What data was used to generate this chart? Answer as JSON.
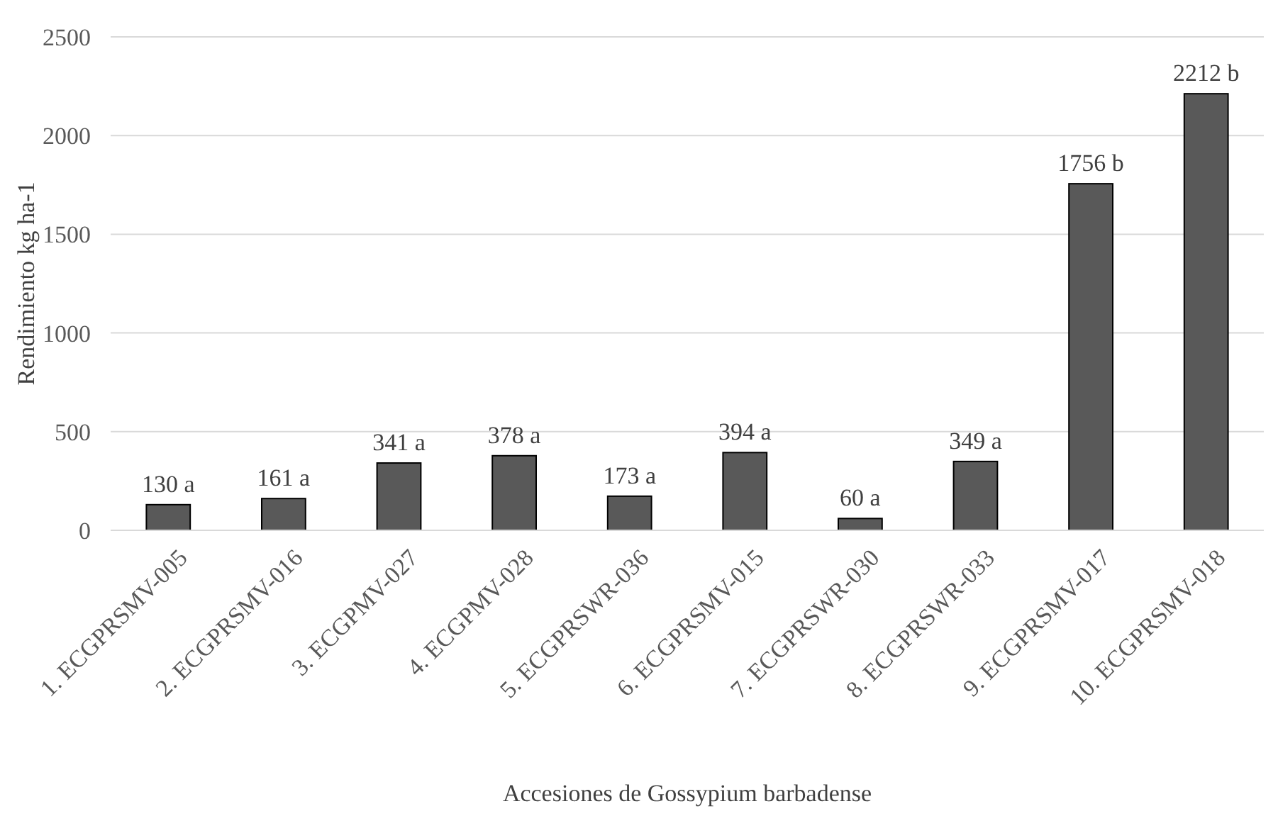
{
  "chart_data": {
    "type": "bar",
    "xlabel": "Accesiones de Gossypium barbadense",
    "ylabel": "Rendimiento kg ha-1",
    "categories": [
      "1. ECGPRSMV-005",
      "2. ECGPRSMV-016",
      "3. ECGPMV-027",
      "4. ECGPMV-028",
      "5. ECGPRSWR-036",
      "6. ECGPRSMV-015",
      "7. ECGPRSWR-030",
      "8. ECGPRSWR-033",
      "9. ECGPRSMV-017",
      "10. ECGPRSMV-018"
    ],
    "values": [
      130,
      161,
      341,
      378,
      173,
      394,
      60,
      349,
      1756,
      2212
    ],
    "value_labels": [
      "130 a",
      "161 a",
      "341 a",
      "378 a",
      "173 a",
      "394 a",
      "60 a",
      "349 a",
      "1756 b",
      "2212 b"
    ],
    "color": "#595959",
    "ylim": [
      0,
      2500
    ],
    "yticks": [
      0,
      500,
      1000,
      1500,
      2000,
      2500
    ],
    "grid": "y"
  }
}
